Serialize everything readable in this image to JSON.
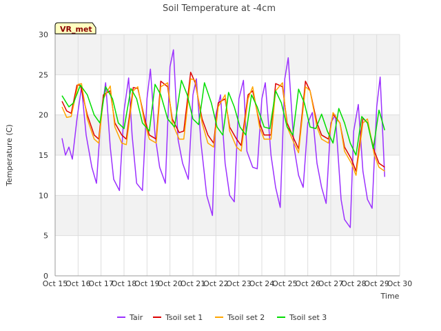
{
  "chart_data": {
    "type": "line",
    "title": "Soil Temperature at -4cm",
    "xlabel": "Time",
    "ylabel": "Temperature (C)",
    "badge": "VR_met",
    "xlim": [
      15,
      30
    ],
    "ylim": [
      0,
      30
    ],
    "x_ticks": [
      15,
      16,
      17,
      18,
      19,
      20,
      21,
      22,
      23,
      24,
      25,
      26,
      27,
      28,
      29,
      30
    ],
    "x_tick_labels": [
      "Oct 15",
      "Oct 16",
      "Oct 17",
      "Oct 18",
      "Oct 19",
      "Oct 20",
      "Oct 21",
      "Oct 22",
      "Oct 23",
      "Oct 24",
      "Oct 25",
      "Oct 26",
      "Oct 27",
      "Oct 28",
      "Oct 29",
      "Oct 30"
    ],
    "y_ticks": [
      0,
      5,
      10,
      15,
      20,
      25,
      30
    ],
    "y_tick_labels": [
      "0",
      "5",
      "10",
      "15",
      "20",
      "25",
      "30"
    ],
    "grid": true,
    "legend_position": "bottom",
    "series": [
      {
        "name": "Tair",
        "color": "#9b30ff",
        "x": [
          15.3,
          15.45,
          15.6,
          15.75,
          15.95,
          16.15,
          16.35,
          16.6,
          16.8,
          17.0,
          17.2,
          17.4,
          17.55,
          17.8,
          18.0,
          18.2,
          18.35,
          18.55,
          18.8,
          19.0,
          19.15,
          19.35,
          19.55,
          19.8,
          20.0,
          20.15,
          20.35,
          20.55,
          20.8,
          21.0,
          21.15,
          21.35,
          21.6,
          21.85,
          22.0,
          22.2,
          22.4,
          22.6,
          22.8,
          23.0,
          23.2,
          23.35,
          23.6,
          23.8,
          24.0,
          24.15,
          24.4,
          24.6,
          24.8,
          25.0,
          25.15,
          25.4,
          25.6,
          25.8,
          26.0,
          26.2,
          26.4,
          26.6,
          26.8,
          27.0,
          27.2,
          27.45,
          27.6,
          27.85,
          28.0,
          28.2,
          28.4,
          28.6,
          28.8,
          29.0,
          29.15,
          29.35
        ],
        "y": [
          17.1,
          15.0,
          16.0,
          14.5,
          19.5,
          23.5,
          17.5,
          13.5,
          11.5,
          20.0,
          24.0,
          16.0,
          12.0,
          10.6,
          20.5,
          24.6,
          17.5,
          11.5,
          10.6,
          22.0,
          25.7,
          17.5,
          13.5,
          11.5,
          26.0,
          28.1,
          17.0,
          14.0,
          12.0,
          22.5,
          24.5,
          16.5,
          10.0,
          7.5,
          20.0,
          22.5,
          14.0,
          10.0,
          9.2,
          22.0,
          24.3,
          15.5,
          13.5,
          13.3,
          22.0,
          24.0,
          15.0,
          11.0,
          8.5,
          24.5,
          27.1,
          16.0,
          12.5,
          11.0,
          19.0,
          20.3,
          14.0,
          11.0,
          9.0,
          19.0,
          20.0,
          9.5,
          7.0,
          6.0,
          18.0,
          21.3,
          13.0,
          9.5,
          8.4,
          21.0,
          24.7,
          12.3
        ]
      },
      {
        "name": "Tsoil set 1",
        "color": "#dd0000",
        "x": [
          15.3,
          15.5,
          15.7,
          15.95,
          16.1,
          16.4,
          16.7,
          16.9,
          17.1,
          17.4,
          17.6,
          17.9,
          18.1,
          18.4,
          18.6,
          18.9,
          19.1,
          19.4,
          19.6,
          19.9,
          20.1,
          20.4,
          20.6,
          20.9,
          21.1,
          21.4,
          21.65,
          21.9,
          22.1,
          22.4,
          22.6,
          22.9,
          23.1,
          23.4,
          23.6,
          23.9,
          24.1,
          24.4,
          24.6,
          24.9,
          25.1,
          25.4,
          25.6,
          25.9,
          26.1,
          26.4,
          26.6,
          26.9,
          27.1,
          27.4,
          27.6,
          27.9,
          28.1,
          28.4,
          28.6,
          28.9,
          29.1,
          29.35
        ],
        "y": [
          21.7,
          20.5,
          20.2,
          23.7,
          23.7,
          20.0,
          17.5,
          17.0,
          22.5,
          23.0,
          19.0,
          17.5,
          17.0,
          23.4,
          23.3,
          19.5,
          17.5,
          17.0,
          24.2,
          23.5,
          19.5,
          17.8,
          18.0,
          25.3,
          24.0,
          19.5,
          17.5,
          16.5,
          21.5,
          22.0,
          18.5,
          17.0,
          16.2,
          22.5,
          23.0,
          19.0,
          17.5,
          17.5,
          23.9,
          23.5,
          19.0,
          17.0,
          15.8,
          24.2,
          23.0,
          19.0,
          17.5,
          17.0,
          20.1,
          19.0,
          16.0,
          14.5,
          13.0,
          19.6,
          19.0,
          15.5,
          14.0,
          13.5
        ]
      },
      {
        "name": "Tsoil set 2",
        "color": "#ffa500",
        "x": [
          15.3,
          15.5,
          15.7,
          16.0,
          16.15,
          16.4,
          16.7,
          16.9,
          17.1,
          17.4,
          17.6,
          17.9,
          18.1,
          18.4,
          18.6,
          18.9,
          19.1,
          19.4,
          19.6,
          19.9,
          20.1,
          20.4,
          20.6,
          20.9,
          21.1,
          21.4,
          21.65,
          21.9,
          22.1,
          22.4,
          22.6,
          22.9,
          23.1,
          23.4,
          23.6,
          23.9,
          24.1,
          24.4,
          24.6,
          24.9,
          25.1,
          25.4,
          25.6,
          25.9,
          26.1,
          26.4,
          26.6,
          26.9,
          27.1,
          27.4,
          27.6,
          27.9,
          28.1,
          28.4,
          28.6,
          28.9,
          29.1,
          29.35
        ],
        "y": [
          21.0,
          19.7,
          19.8,
          23.8,
          23.9,
          19.5,
          17.0,
          16.5,
          22.0,
          23.6,
          18.5,
          16.5,
          16.3,
          23.0,
          23.5,
          19.0,
          17.0,
          16.5,
          23.5,
          24.0,
          19.0,
          17.0,
          17.0,
          24.5,
          24.3,
          19.0,
          16.5,
          16.0,
          21.0,
          22.5,
          18.0,
          16.0,
          15.5,
          22.0,
          23.5,
          18.5,
          17.0,
          17.0,
          23.0,
          24.0,
          18.5,
          16.5,
          15.3,
          23.5,
          23.0,
          18.5,
          17.0,
          16.5,
          20.3,
          19.0,
          15.5,
          14.0,
          12.5,
          19.0,
          19.5,
          15.0,
          13.5,
          13.0
        ]
      },
      {
        "name": "Tsoil set 3",
        "color": "#00dd00",
        "x": [
          15.3,
          15.6,
          15.8,
          16.1,
          16.4,
          16.7,
          16.95,
          17.2,
          17.5,
          17.75,
          18.0,
          18.3,
          18.55,
          18.8,
          19.1,
          19.35,
          19.6,
          19.9,
          20.2,
          20.5,
          20.75,
          21.0,
          21.25,
          21.5,
          21.8,
          22.05,
          22.3,
          22.55,
          22.8,
          23.05,
          23.3,
          23.55,
          23.8,
          24.1,
          24.35,
          24.6,
          24.85,
          25.1,
          25.35,
          25.6,
          25.85,
          26.1,
          26.35,
          26.6,
          26.85,
          27.1,
          27.35,
          27.6,
          27.85,
          28.1,
          28.35,
          28.6,
          28.85,
          29.1,
          29.35
        ],
        "y": [
          22.4,
          21.0,
          21.5,
          23.7,
          22.5,
          20.0,
          19.0,
          23.5,
          22.0,
          19.0,
          18.3,
          23.3,
          22.0,
          19.0,
          18.0,
          23.8,
          22.5,
          19.5,
          18.5,
          24.3,
          22.5,
          19.5,
          18.8,
          24.0,
          21.5,
          18.5,
          17.5,
          22.8,
          21.0,
          18.5,
          17.5,
          22.5,
          21.0,
          18.5,
          18.3,
          23.0,
          21.5,
          18.5,
          17.5,
          23.2,
          21.5,
          18.5,
          18.3,
          20.1,
          18.0,
          16.5,
          20.8,
          19.0,
          16.5,
          15.0,
          19.8,
          19.0,
          15.8,
          20.6,
          18.1
        ]
      }
    ]
  }
}
